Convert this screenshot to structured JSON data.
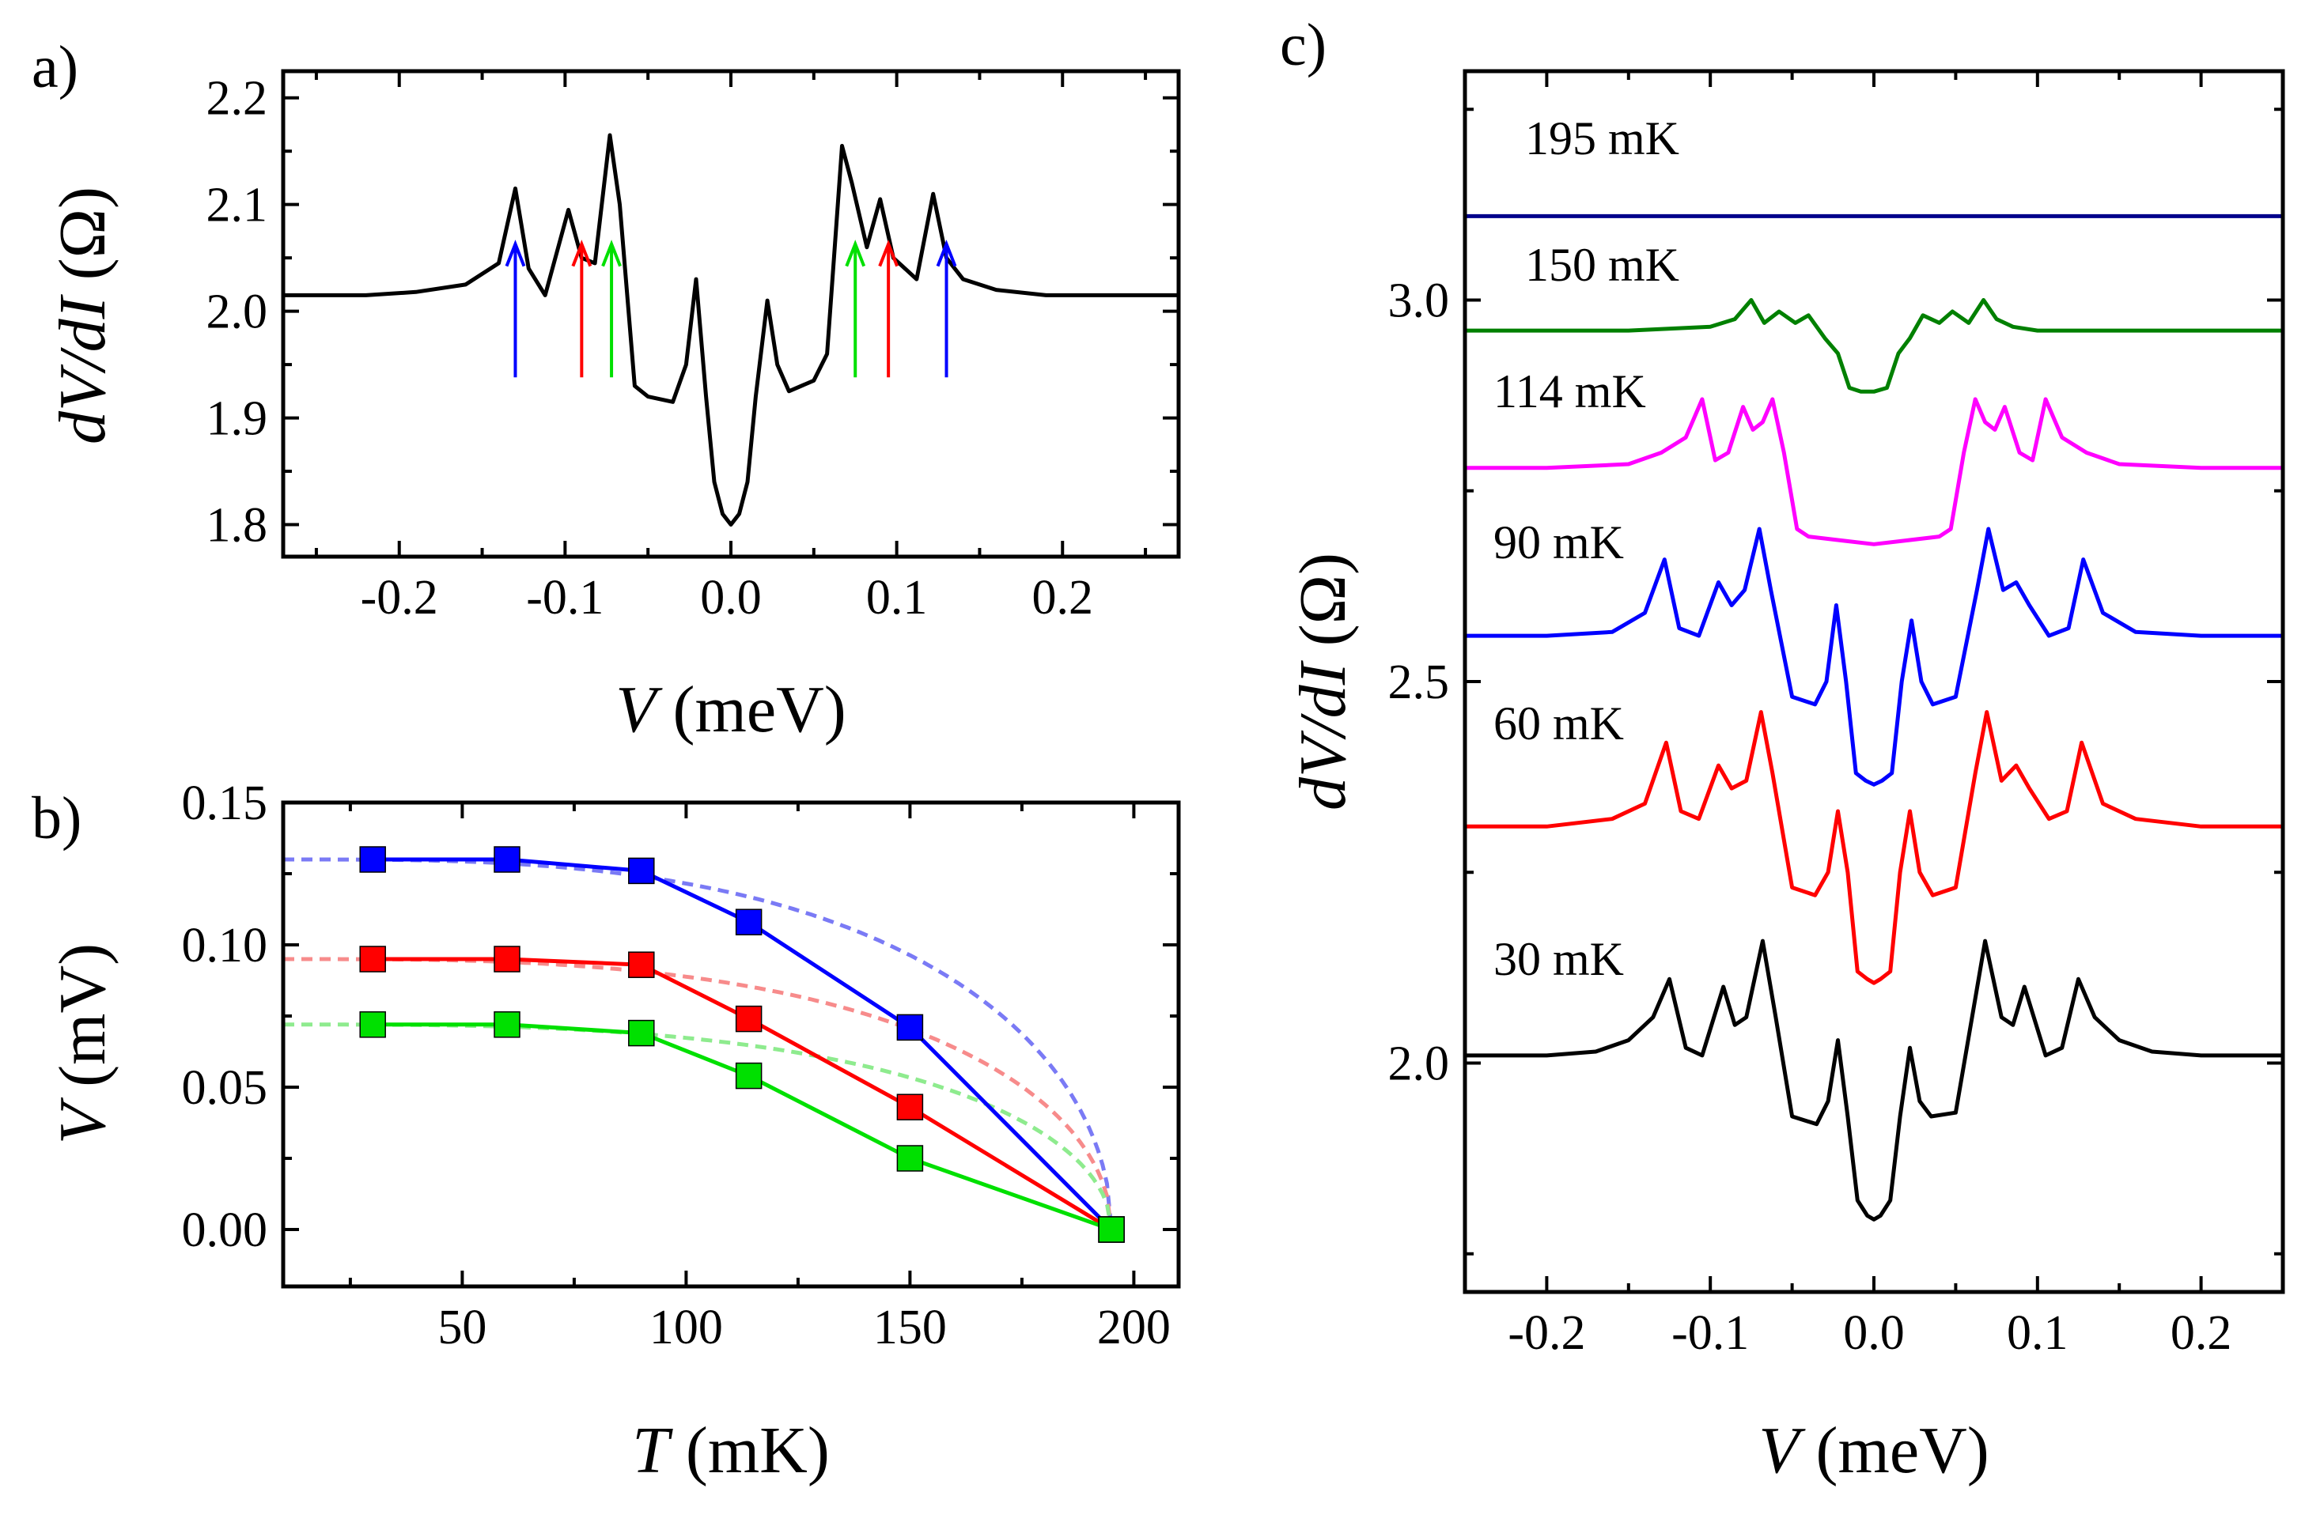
{
  "chart_data": [
    {
      "panel": "a)",
      "type": "line",
      "xlabel": "V (meV)",
      "ylabel": "dV/dI (Ω)",
      "xlim": [
        -0.27,
        0.27
      ],
      "ylim": [
        1.77,
        2.225
      ],
      "xticks": [
        "-0.2",
        "-0.1",
        "0.0",
        "0.1",
        "0.2"
      ],
      "yticks": [
        "1.8",
        "1.9",
        "2.0",
        "2.1",
        "2.2"
      ],
      "series": [
        {
          "name": "30 mK",
          "color": "#000000",
          "x": [
            -0.27,
            -0.22,
            -0.19,
            -0.16,
            -0.14,
            -0.13,
            -0.122,
            -0.112,
            -0.098,
            -0.09,
            -0.082,
            -0.073,
            -0.067,
            -0.058,
            -0.05,
            -0.035,
            -0.027,
            -0.021,
            -0.015,
            -0.01,
            -0.005,
            0.0,
            0.005,
            0.01,
            0.015,
            0.022,
            0.028,
            0.035,
            0.05,
            0.058,
            0.067,
            0.073,
            0.082,
            0.09,
            0.098,
            0.112,
            0.122,
            0.13,
            0.14,
            0.16,
            0.19,
            0.22,
            0.27
          ],
          "y": [
            2.015,
            2.015,
            2.018,
            2.025,
            2.045,
            2.115,
            2.04,
            2.015,
            2.095,
            2.05,
            2.045,
            2.165,
            2.1,
            1.93,
            1.92,
            1.915,
            1.95,
            2.03,
            1.92,
            1.84,
            1.81,
            1.8,
            1.81,
            1.84,
            1.92,
            2.01,
            1.95,
            1.925,
            1.935,
            1.96,
            2.155,
            2.12,
            2.06,
            2.105,
            2.05,
            2.03,
            2.11,
            2.05,
            2.03,
            2.02,
            2.015,
            2.015,
            2.015
          ]
        }
      ],
      "arrows": [
        {
          "x": -0.13,
          "color": "#0000ff"
        },
        {
          "x": -0.09,
          "color": "#ff0000"
        },
        {
          "x": -0.072,
          "color": "#00e000"
        },
        {
          "x": 0.075,
          "color": "#00e000"
        },
        {
          "x": 0.095,
          "color": "#ff0000"
        },
        {
          "x": 0.13,
          "color": "#0000ff"
        }
      ]
    },
    {
      "panel": "b)",
      "type": "scatter",
      "xlabel": "T (mK)",
      "ylabel": "V (mV)",
      "xlim": [
        10,
        210
      ],
      "ylim": [
        -0.02,
        0.15
      ],
      "xticks": [
        "50",
        "100",
        "150",
        "200"
      ],
      "yticks": [
        "0.00",
        "0.05",
        "0.10",
        "0.15"
      ],
      "series": [
        {
          "name": "blue",
          "color": "#0000ff",
          "x": [
            30,
            60,
            90,
            114,
            150,
            195
          ],
          "y": [
            0.13,
            0.13,
            0.126,
            0.108,
            0.071,
            0.0
          ]
        },
        {
          "name": "red",
          "color": "#ff0000",
          "x": [
            30,
            60,
            90,
            114,
            150,
            195
          ],
          "y": [
            0.095,
            0.095,
            0.093,
            0.074,
            0.043,
            0.0
          ]
        },
        {
          "name": "green",
          "color": "#00e000",
          "x": [
            30,
            60,
            90,
            114,
            150,
            195
          ],
          "y": [
            0.072,
            0.072,
            0.069,
            0.054,
            0.025,
            0.0
          ]
        }
      ],
      "fits": [
        {
          "color": "#7a7af5",
          "v0": 0.13,
          "tc": 195
        },
        {
          "color": "#f78b8b",
          "v0": 0.095,
          "tc": 195
        },
        {
          "color": "#8eeb8e",
          "v0": 0.072,
          "tc": 195
        }
      ]
    },
    {
      "panel": "c)",
      "type": "line",
      "xlabel": "V (meV)",
      "ylabel": "dV/dI (Ω)",
      "xlim": [
        -0.25,
        0.25
      ],
      "ylim": [
        1.7,
        3.3
      ],
      "xticks": [
        "-0.2",
        "-0.1",
        "0.0",
        "0.1",
        "0.2"
      ],
      "yticks": [
        "2.0",
        "2.5",
        "3.0"
      ],
      "series": [
        {
          "name": "30 mK",
          "color": "#000000",
          "x": [
            -0.25,
            -0.2,
            -0.17,
            -0.15,
            -0.135,
            -0.125,
            -0.115,
            -0.105,
            -0.092,
            -0.085,
            -0.078,
            -0.068,
            -0.06,
            -0.05,
            -0.035,
            -0.028,
            -0.022,
            -0.016,
            -0.01,
            -0.004,
            0.0,
            0.004,
            0.01,
            0.016,
            0.022,
            0.028,
            0.035,
            0.05,
            0.06,
            0.068,
            0.078,
            0.085,
            0.092,
            0.105,
            0.115,
            0.125,
            0.135,
            0.15,
            0.17,
            0.2,
            0.25
          ],
          "y": [
            2.01,
            2.01,
            2.015,
            2.03,
            2.06,
            2.11,
            2.02,
            2.01,
            2.1,
            2.05,
            2.06,
            2.16,
            2.06,
            1.93,
            1.92,
            1.95,
            2.03,
            1.93,
            1.82,
            1.8,
            1.795,
            1.8,
            1.82,
            1.93,
            2.02,
            1.95,
            1.93,
            1.935,
            2.06,
            2.16,
            2.06,
            2.05,
            2.1,
            2.01,
            2.02,
            2.11,
            2.06,
            2.03,
            2.015,
            2.01,
            2.01
          ]
        },
        {
          "name": "60 mK",
          "color": "#ff0000",
          "x": [
            -0.25,
            -0.2,
            -0.16,
            -0.14,
            -0.127,
            -0.118,
            -0.107,
            -0.095,
            -0.087,
            -0.078,
            -0.069,
            -0.062,
            -0.05,
            -0.036,
            -0.028,
            -0.022,
            -0.016,
            -0.01,
            -0.004,
            0.0,
            0.004,
            0.01,
            0.016,
            0.022,
            0.028,
            0.036,
            0.05,
            0.062,
            0.069,
            0.078,
            0.087,
            0.095,
            0.107,
            0.118,
            0.127,
            0.14,
            0.16,
            0.2,
            0.25
          ],
          "y": [
            2.31,
            2.31,
            2.32,
            2.34,
            2.42,
            2.33,
            2.32,
            2.39,
            2.36,
            2.37,
            2.46,
            2.38,
            2.23,
            2.22,
            2.25,
            2.33,
            2.25,
            2.12,
            2.11,
            2.105,
            2.11,
            2.12,
            2.25,
            2.33,
            2.25,
            2.22,
            2.23,
            2.38,
            2.46,
            2.37,
            2.39,
            2.36,
            2.32,
            2.33,
            2.42,
            2.34,
            2.32,
            2.31,
            2.31
          ]
        },
        {
          "name": "90 mK",
          "color": "#0000ff",
          "x": [
            -0.25,
            -0.2,
            -0.16,
            -0.14,
            -0.128,
            -0.119,
            -0.107,
            -0.095,
            -0.087,
            -0.079,
            -0.07,
            -0.063,
            -0.05,
            -0.036,
            -0.029,
            -0.023,
            -0.017,
            -0.011,
            -0.005,
            0.0,
            0.005,
            0.011,
            0.017,
            0.023,
            0.029,
            0.036,
            0.05,
            0.063,
            0.07,
            0.079,
            0.087,
            0.095,
            0.107,
            0.119,
            0.128,
            0.14,
            0.16,
            0.2,
            0.25
          ],
          "y": [
            2.56,
            2.56,
            2.565,
            2.59,
            2.66,
            2.57,
            2.56,
            2.63,
            2.6,
            2.62,
            2.7,
            2.62,
            2.48,
            2.47,
            2.5,
            2.6,
            2.5,
            2.38,
            2.37,
            2.365,
            2.37,
            2.38,
            2.5,
            2.58,
            2.5,
            2.47,
            2.48,
            2.62,
            2.7,
            2.62,
            2.63,
            2.6,
            2.56,
            2.57,
            2.66,
            2.59,
            2.565,
            2.56,
            2.56
          ]
        },
        {
          "name": "114 mK",
          "color": "#ff00ff",
          "x": [
            -0.25,
            -0.2,
            -0.15,
            -0.13,
            -0.115,
            -0.105,
            -0.097,
            -0.089,
            -0.08,
            -0.074,
            -0.068,
            -0.062,
            -0.055,
            -0.047,
            -0.04,
            -0.02,
            0.0,
            0.02,
            0.04,
            0.047,
            0.055,
            0.062,
            0.068,
            0.074,
            0.08,
            0.089,
            0.097,
            0.105,
            0.115,
            0.13,
            0.15,
            0.2,
            0.25
          ],
          "y": [
            2.78,
            2.78,
            2.785,
            2.8,
            2.82,
            2.87,
            2.79,
            2.8,
            2.86,
            2.83,
            2.84,
            2.87,
            2.8,
            2.7,
            2.69,
            2.685,
            2.68,
            2.685,
            2.69,
            2.7,
            2.8,
            2.87,
            2.84,
            2.83,
            2.86,
            2.8,
            2.79,
            2.87,
            2.82,
            2.8,
            2.785,
            2.78,
            2.78
          ]
        },
        {
          "name": "150 mK",
          "color": "#008000",
          "x": [
            -0.25,
            -0.15,
            -0.1,
            -0.085,
            -0.075,
            -0.067,
            -0.058,
            -0.048,
            -0.04,
            -0.03,
            -0.022,
            -0.015,
            -0.008,
            0.0,
            0.008,
            0.015,
            0.022,
            0.03,
            0.04,
            0.048,
            0.058,
            0.067,
            0.075,
            0.085,
            0.1,
            0.15,
            0.25
          ],
          "y": [
            2.96,
            2.96,
            2.965,
            2.975,
            3.0,
            2.97,
            2.985,
            2.97,
            2.98,
            2.95,
            2.93,
            2.885,
            2.88,
            2.88,
            2.885,
            2.93,
            2.95,
            2.98,
            2.97,
            2.985,
            2.97,
            3.0,
            2.975,
            2.965,
            2.96,
            2.96,
            2.96
          ]
        },
        {
          "name": "195 mK",
          "color": "#00008b",
          "x": [
            -0.25,
            0.25
          ],
          "y": [
            3.11,
            3.11
          ]
        }
      ],
      "annotations": [
        "195 mK",
        "150 mK",
        "114 mK",
        "90 mK",
        "60 mK",
        "30 mK"
      ]
    }
  ]
}
